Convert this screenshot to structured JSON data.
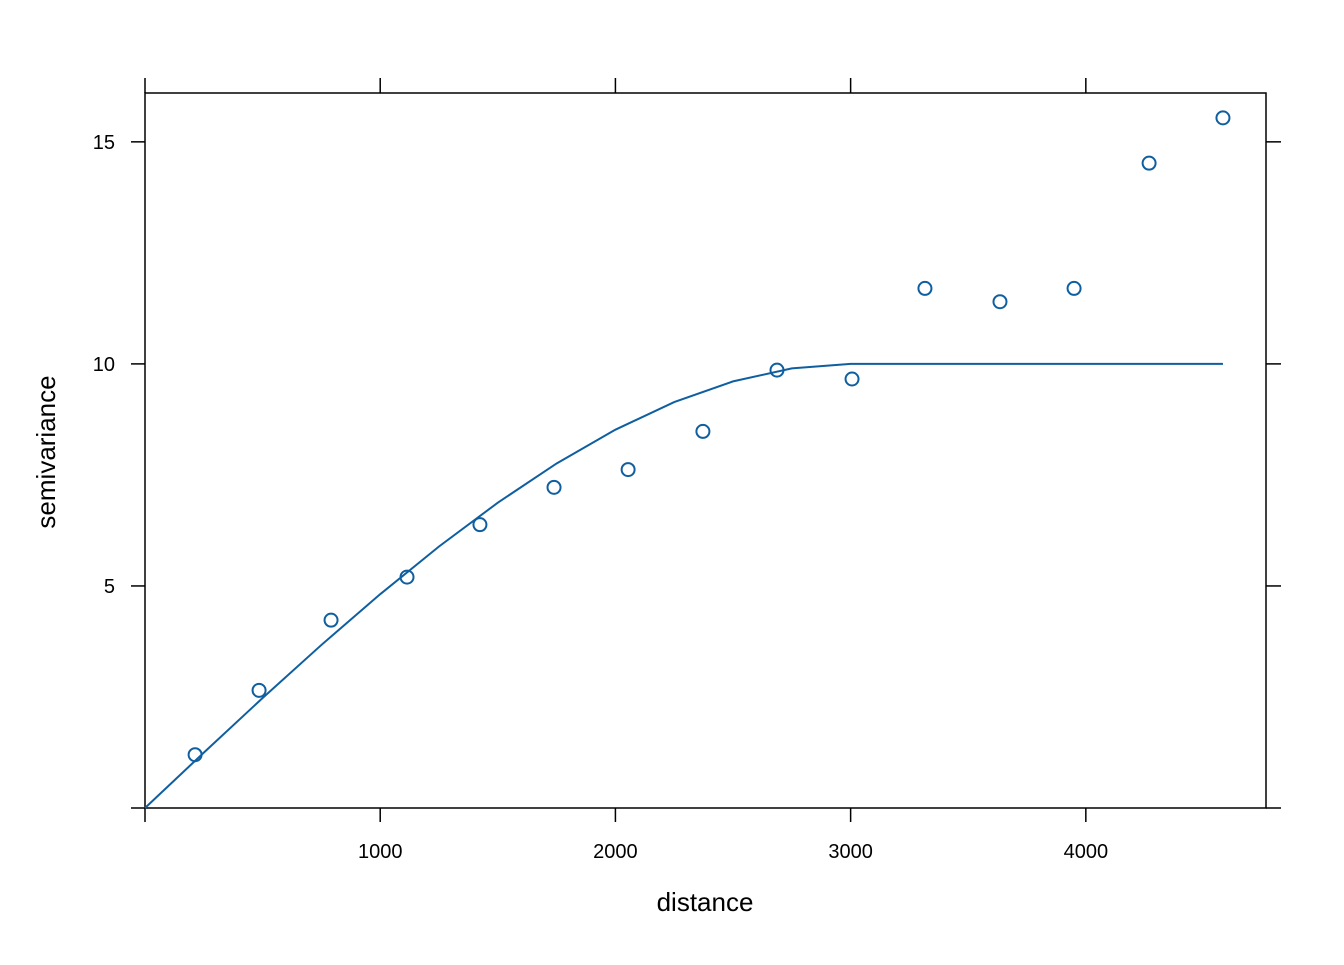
{
  "chart_data": {
    "type": "scatter",
    "xlabel": "distance",
    "ylabel": "semivariance",
    "xlim": [
      0,
      4766
    ],
    "ylim": [
      0,
      16.1
    ],
    "xticks": [
      1000,
      2000,
      3000,
      4000
    ],
    "yticks": [
      5,
      10,
      15
    ],
    "series": [
      {
        "type": "points",
        "color": "#0f5fa0",
        "x": [
          213,
          485,
          791,
          1114,
          1424,
          1739,
          2054,
          2372,
          2687,
          3006,
          3316,
          3635,
          3950,
          4269,
          4583
        ],
        "values": [
          1.2,
          2.65,
          4.23,
          5.2,
          6.38,
          7.22,
          7.62,
          8.48,
          9.86,
          9.66,
          11.7,
          11.4,
          11.7,
          14.52,
          15.54
        ]
      },
      {
        "type": "line",
        "color": "#0f5fa0",
        "x": [
          0,
          250,
          500,
          750,
          1000,
          1250,
          1500,
          1750,
          2000,
          2250,
          2500,
          2750,
          3000,
          4583
        ],
        "values": [
          0,
          1.247,
          2.477,
          3.672,
          4.815,
          5.888,
          6.875,
          7.758,
          8.519,
          9.141,
          9.606,
          9.899,
          10,
          10
        ]
      }
    ]
  }
}
